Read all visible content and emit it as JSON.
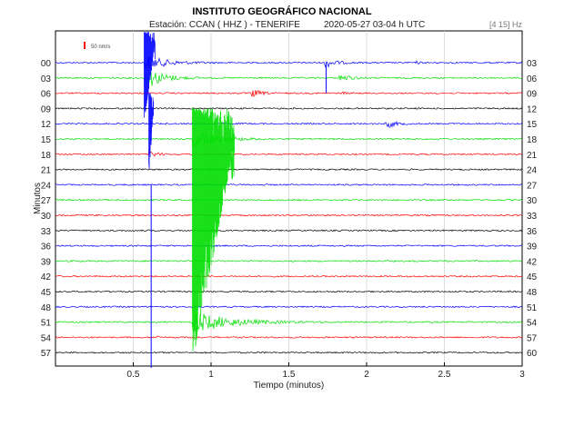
{
  "chart_data": {
    "type": "line",
    "title": "INSTITUTO GEOGRÁFICO NACIONAL",
    "subtitle_station": "Estación:  CCAN ( HHZ ) - TENERIFE",
    "subtitle_date": "2020-05-27  03-04 h UTC",
    "filter_label": "[4 15] Hz",
    "scale_label": "50 nm/s",
    "xlabel": "Tiempo (minutos)",
    "ylabel": "Minutos",
    "xlim": [
      0,
      3
    ],
    "xticks": [
      0.5,
      1,
      1.5,
      2,
      2.5,
      3
    ],
    "xtick_labels": [
      "0.5",
      "1",
      "1.5",
      "2",
      "2.5",
      "3"
    ],
    "grid": true,
    "traces": [
      {
        "left": "00",
        "right": "03",
        "color": "#0000ff"
      },
      {
        "left": "03",
        "right": "06",
        "color": "#00dd00"
      },
      {
        "left": "06",
        "right": "09",
        "color": "#ff0000"
      },
      {
        "left": "09",
        "right": "12",
        "color": "#000000"
      },
      {
        "left": "12",
        "right": "15",
        "color": "#0000ff"
      },
      {
        "left": "15",
        "right": "18",
        "color": "#00dd00"
      },
      {
        "left": "18",
        "right": "21",
        "color": "#ff0000"
      },
      {
        "left": "21",
        "right": "24",
        "color": "#000000"
      },
      {
        "left": "24",
        "right": "27",
        "color": "#0000ff"
      },
      {
        "left": "27",
        "right": "30",
        "color": "#00dd00"
      },
      {
        "left": "30",
        "right": "33",
        "color": "#ff0000"
      },
      {
        "left": "33",
        "right": "36",
        "color": "#000000"
      },
      {
        "left": "36",
        "right": "39",
        "color": "#0000ff"
      },
      {
        "left": "39",
        "right": "42",
        "color": "#00dd00"
      },
      {
        "left": "42",
        "right": "45",
        "color": "#ff0000"
      },
      {
        "left": "45",
        "right": "48",
        "color": "#000000"
      },
      {
        "left": "48",
        "right": "51",
        "color": "#0000ff"
      },
      {
        "left": "51",
        "right": "54",
        "color": "#00dd00"
      },
      {
        "left": "54",
        "right": "57",
        "color": "#ff0000"
      },
      {
        "left": "57",
        "right": "60",
        "color": "#000000"
      }
    ],
    "events": [
      {
        "trace": 0,
        "start": 0.57,
        "peak": 9,
        "decay": 0.12,
        "duration": 0.5
      },
      {
        "trace": 0,
        "start": 1.73,
        "peak": 6,
        "decay": 0.06,
        "duration": 0.3
      },
      {
        "trace": 0,
        "start": 2.32,
        "peak": 1.5,
        "decay": 0.02,
        "duration": 0.08
      },
      {
        "trace": 0,
        "start": 2.53,
        "peak": 1.5,
        "decay": 0.02,
        "duration": 0.08
      },
      {
        "trace": 1,
        "start": 0.57,
        "peak": 14,
        "decay": 0.1,
        "duration": 0.35
      },
      {
        "trace": 1,
        "start": 1.82,
        "peak": 5,
        "decay": 0.06,
        "duration": 0.3
      },
      {
        "trace": 2,
        "start": 1.26,
        "peak": 5,
        "decay": 0.05,
        "duration": 0.2
      },
      {
        "trace": 2,
        "start": 1.84,
        "peak": 2,
        "decay": 0.02,
        "duration": 0.06
      },
      {
        "trace": 4,
        "start": 2.12,
        "peak": 6,
        "decay": 0.05,
        "duration": 0.25
      },
      {
        "trace": 5,
        "start": 0.88,
        "peak": 9,
        "decay": 0.15,
        "duration": 0.55
      },
      {
        "trace": 6,
        "start": 0.6,
        "peak": 4,
        "decay": 0.05,
        "duration": 0.12
      },
      {
        "trace": 17,
        "start": 0.88,
        "peak": 12,
        "decay": 0.22,
        "duration": 0.95
      },
      {
        "trace": 18,
        "start": 0.65,
        "peak": 2,
        "decay": 0.02,
        "duration": 0.06
      },
      {
        "trace": 16,
        "start": 2.96,
        "peak": 4,
        "decay": 0.01,
        "duration": 0.04
      }
    ],
    "saturated_bands": [
      {
        "from_trace": 0,
        "to_trace": 4,
        "x_start": 0.57,
        "x_end": 0.64,
        "color": "#0000ff"
      },
      {
        "from_trace": 4,
        "to_trace": 8,
        "x_start": 0.6,
        "x_end": 0.63,
        "color": "#0000ff"
      },
      {
        "from_trace": 5,
        "to_trace": 21,
        "x_start": 0.88,
        "x_end": 1.15,
        "color": "#00dd00"
      }
    ],
    "spikes": [
      {
        "from_trace": 8,
        "to_trace": 20,
        "x": 0.615,
        "color": "#0000ff"
      },
      {
        "from_trace": 0,
        "to_trace": 2,
        "x": 1.74,
        "color": "#0000ff"
      }
    ]
  }
}
